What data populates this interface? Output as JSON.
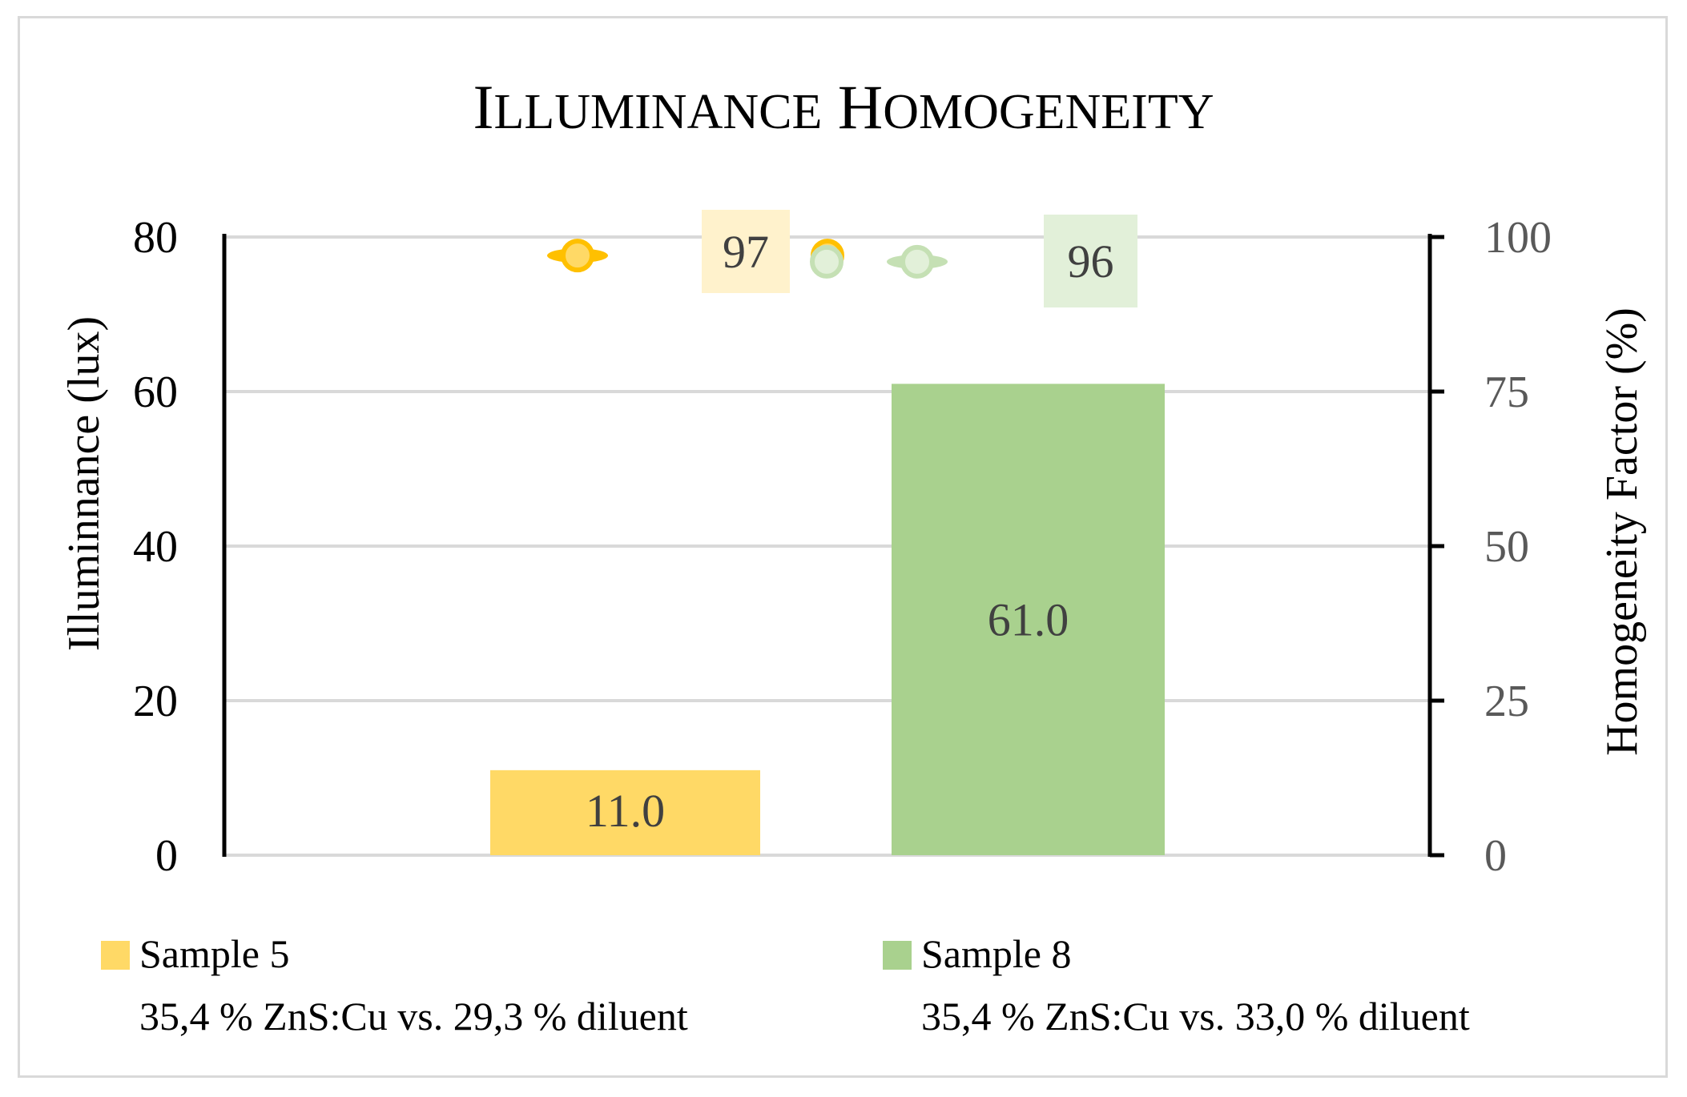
{
  "chart_data": {
    "type": "bar",
    "title": "Illuminance Homogeneity",
    "ylabel": "Illuminnance (lux)",
    "y2label": "Homogeneity Factor (%)",
    "ylim": [
      0,
      80
    ],
    "y2lim": [
      0,
      100
    ],
    "yticks": [
      0,
      20,
      40,
      60,
      80
    ],
    "y2ticks": [
      0,
      25,
      50,
      75,
      100
    ],
    "grid": true,
    "legend_position": "bottom",
    "series": [
      {
        "name": "Sample 5",
        "description": "35,4 % ZnS:Cu vs. 29,3 % diluent",
        "illuminance": 11.0,
        "illuminance_label": "11.0",
        "homogeneity": 97,
        "homogeneity_label": "97",
        "color": "#ffd966",
        "marker_color": "#ffc000",
        "label_bg": "#fff2cc"
      },
      {
        "name": "Sample 8",
        "description": "35,4 % ZnS:Cu vs. 33,0 % diluent",
        "illuminance": 61.0,
        "illuminance_label": "61.0",
        "homogeneity": 96,
        "homogeneity_label": "96",
        "color": "#a9d18e",
        "marker_color": "#c5e0b4",
        "label_bg": "#e2f0d9"
      }
    ]
  }
}
